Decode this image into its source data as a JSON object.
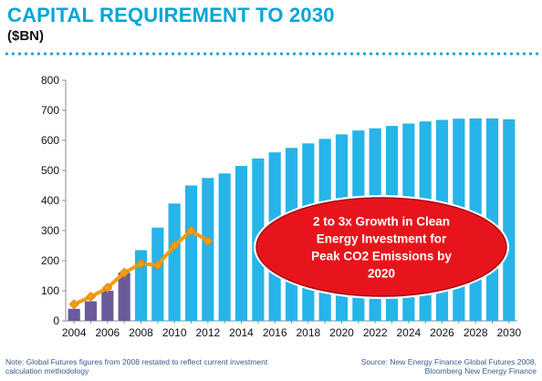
{
  "header": {
    "title": "CAPITAL REQUIREMENT TO 2030",
    "subtitle": "($BN)"
  },
  "chart_data": {
    "type": "bar",
    "title": "CAPITAL REQUIREMENT TO 2030",
    "ylim": [
      0,
      800
    ],
    "yticks": [
      0,
      100,
      200,
      300,
      400,
      500,
      600,
      700,
      800
    ],
    "x_tick_labels": [
      "2004",
      "2006",
      "2008",
      "2010",
      "2012",
      "2014",
      "2016",
      "2018",
      "2020",
      "2022",
      "2024",
      "2026",
      "2028",
      "2030"
    ],
    "categories": [
      2004,
      2005,
      2006,
      2007,
      2008,
      2009,
      2010,
      2011,
      2012,
      2013,
      2014,
      2015,
      2016,
      2017,
      2018,
      2019,
      2020,
      2021,
      2022,
      2023,
      2024,
      2025,
      2026,
      2027,
      2028,
      2029,
      2030
    ],
    "series": [
      {
        "values": [
          40,
          65,
          100,
          160,
          235,
          310,
          390,
          450,
          475,
          490,
          515,
          540,
          560,
          575,
          590,
          605,
          620,
          633,
          640,
          648,
          656,
          663,
          668,
          672,
          673,
          673,
          670
        ],
        "colors": [
          "#6b5b9a",
          "#6b5b9a",
          "#6b5b9a",
          "#6b5b9a",
          "#27b4e8",
          "#27b4e8",
          "#27b4e8",
          "#27b4e8",
          "#27b4e8",
          "#27b4e8",
          "#27b4e8",
          "#27b4e8",
          "#27b4e8",
          "#27b4e8",
          "#27b4e8",
          "#27b4e8",
          "#27b4e8",
          "#27b4e8",
          "#27b4e8",
          "#27b4e8",
          "#27b4e8",
          "#27b4e8",
          "#27b4e8",
          "#27b4e8",
          "#27b4e8",
          "#27b4e8",
          "#27b4e8"
        ]
      }
    ],
    "line_series": {
      "x": [
        2004,
        2005,
        2006,
        2007,
        2008,
        2009,
        2010,
        2011,
        2012
      ],
      "values": [
        55,
        80,
        110,
        160,
        190,
        185,
        250,
        300,
        265
      ],
      "color": "#f39c12"
    },
    "annotation": {
      "lines": [
        "2 to 3x Growth in Clean",
        "Energy Investment for",
        "Peak CO2 Emissions by",
        "2020"
      ],
      "color": "#e8141c"
    },
    "grid": false
  },
  "footer": {
    "note": "Note: Global Futures figures from 2008 restated to reflect current investment calculation methodology",
    "source_line1": "Source: New Energy Finance Global Futures 2008,",
    "source_line2": "Bloomberg New Energy Finance"
  }
}
